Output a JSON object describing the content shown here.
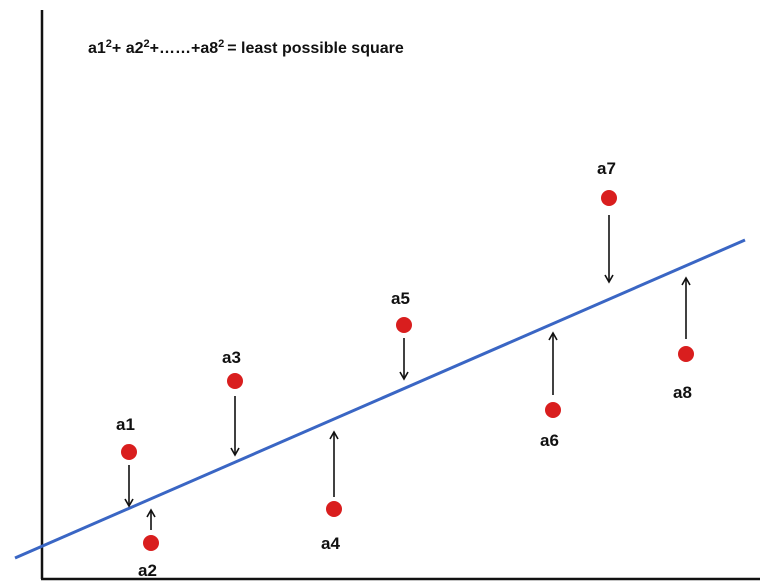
{
  "formula": {
    "terms": [
      "a1",
      "+ a2",
      "+……+a8",
      "= least possible square"
    ],
    "exponents": [
      "2",
      "2",
      "2"
    ]
  },
  "points": [
    {
      "label": "a1"
    },
    {
      "label": "a2"
    },
    {
      "label": "a3"
    },
    {
      "label": "a4"
    },
    {
      "label": "a5"
    },
    {
      "label": "a6"
    },
    {
      "label": "a7"
    },
    {
      "label": "a8"
    }
  ],
  "colors": {
    "point": "#d91e1e",
    "line": "#3a66c4",
    "arrow": "#111111",
    "axis": "#111111"
  }
}
